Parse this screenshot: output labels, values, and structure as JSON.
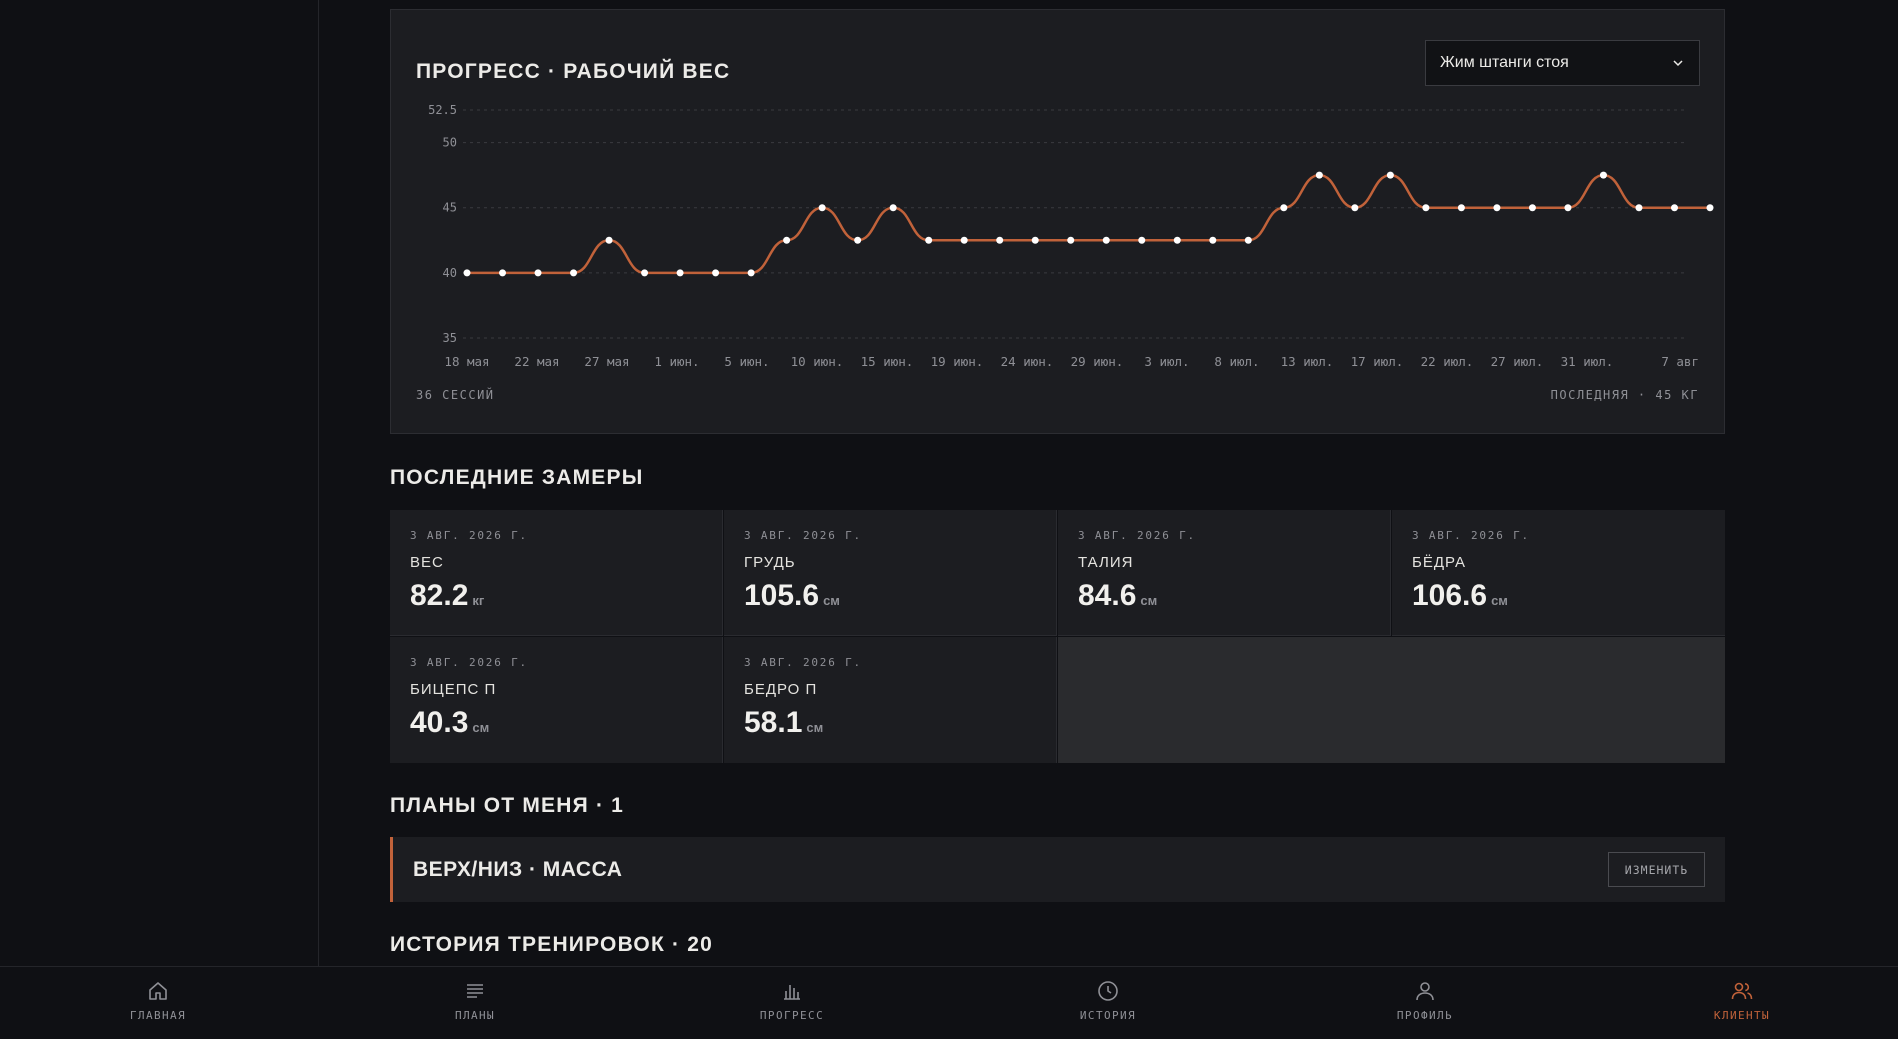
{
  "chart_card": {
    "title": "ПРОГРЕСС · РАБОЧИЙ ВЕС",
    "exercise_select": "Жим штанги стоя",
    "sessions": "36 СЕССИЙ",
    "last": "ПОСЛЕДНЯЯ · 45 КГ"
  },
  "chart_data": {
    "type": "line",
    "title": "ПРОГРЕСС · РАБОЧИЙ ВЕС",
    "xlabel": "",
    "ylabel": "",
    "ylim": [
      35,
      52.5
    ],
    "y_ticks": [
      "52.5",
      "50",
      "45",
      "40",
      "35"
    ],
    "x_tick_labels": [
      "18 мая",
      "22 мая",
      "27 мая",
      "1 июн.",
      "5 июн.",
      "10 июн.",
      "15 июн.",
      "19 июн.",
      "24 июн.",
      "29 июн.",
      "3 июл.",
      "8 июл.",
      "13 июл.",
      "17 июл.",
      "22 июл.",
      "27 июл.",
      "31 июл.",
      "7 авг"
    ],
    "line_color": "#c1623a",
    "grid": true,
    "values": [
      40,
      40,
      40,
      40,
      42.5,
      40,
      40,
      40,
      40,
      42.5,
      45,
      42.5,
      45,
      42.5,
      42.5,
      42.5,
      42.5,
      42.5,
      42.5,
      42.5,
      42.5,
      42.5,
      42.5,
      45,
      47.5,
      45,
      47.5,
      45,
      45,
      45,
      45,
      45,
      47.5,
      45,
      45,
      45
    ]
  },
  "measures": {
    "title": "ПОСЛЕДНИЕ ЗАМЕРЫ",
    "items": [
      {
        "date": "3 АВГ. 2026 Г.",
        "label": "ВЕС",
        "value": "82.2",
        "unit": "кг"
      },
      {
        "date": "3 АВГ. 2026 Г.",
        "label": "ГРУДЬ",
        "value": "105.6",
        "unit": "см"
      },
      {
        "date": "3 АВГ. 2026 Г.",
        "label": "ТАЛИЯ",
        "value": "84.6",
        "unit": "см"
      },
      {
        "date": "3 АВГ. 2026 Г.",
        "label": "БЁДРА",
        "value": "106.6",
        "unit": "см"
      },
      {
        "date": "3 АВГ. 2026 Г.",
        "label": "БИЦЕПС П",
        "value": "40.3",
        "unit": "см"
      },
      {
        "date": "3 АВГ. 2026 Г.",
        "label": "БЕДРО П",
        "value": "58.1",
        "unit": "см"
      }
    ]
  },
  "plans": {
    "title": "ПЛАНЫ ОТ МЕНЯ · 1",
    "items": [
      {
        "name": "ВЕРХ/НИЗ · МАССА",
        "edit_label": "ИЗМЕНИТЬ"
      }
    ]
  },
  "history": {
    "title": "ИСТОРИЯ ТРЕНИРОВОК · 20"
  },
  "nav": {
    "items": [
      {
        "label": "ГЛАВНАЯ",
        "icon": "home-icon"
      },
      {
        "label": "ПЛАНЫ",
        "icon": "list-icon"
      },
      {
        "label": "ПРОГРЕСС",
        "icon": "bar-chart-icon"
      },
      {
        "label": "ИСТОРИЯ",
        "icon": "clock-icon"
      },
      {
        "label": "ПРОФИЛЬ",
        "icon": "user-icon"
      },
      {
        "label": "КЛИЕНТЫ",
        "icon": "users-icon"
      }
    ],
    "active": "КЛИЕНТЫ",
    "accent_color": "#c1623a",
    "inactive_color": "#8f9096"
  }
}
